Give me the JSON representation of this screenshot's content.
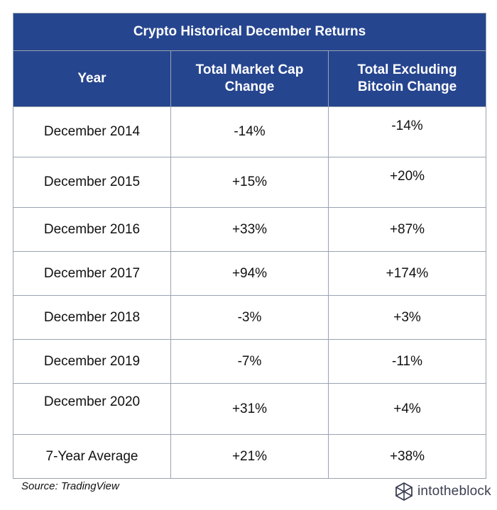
{
  "table": {
    "title": "Crypto Historical December Returns",
    "headers": [
      [
        "Year"
      ],
      [
        "Total Market Cap",
        "Change"
      ],
      [
        "Total Excluding",
        "Bitcoin Change"
      ]
    ],
    "rows": [
      [
        "December 2014",
        "-14%",
        "-14%"
      ],
      [
        "December 2015",
        "+15%",
        "+20%"
      ],
      [
        "December 2016",
        "+33%",
        "+87%"
      ],
      [
        "December 2017",
        "+94%",
        "+174%"
      ],
      [
        "December 2018",
        "-3%",
        "+3%"
      ],
      [
        "December 2019",
        "-7%",
        "-11%"
      ],
      [
        "December 2020",
        "+31%",
        "+4%"
      ],
      [
        "7-Year Average",
        "+21%",
        "+38%"
      ]
    ]
  },
  "source": "Source: TradingView",
  "brand": {
    "name": "intotheblock",
    "icon": "intotheblock-logo-icon"
  },
  "colors": {
    "header_bg": "#26458f",
    "header_text": "#ffffff",
    "grid": "#9aa3b0"
  }
}
